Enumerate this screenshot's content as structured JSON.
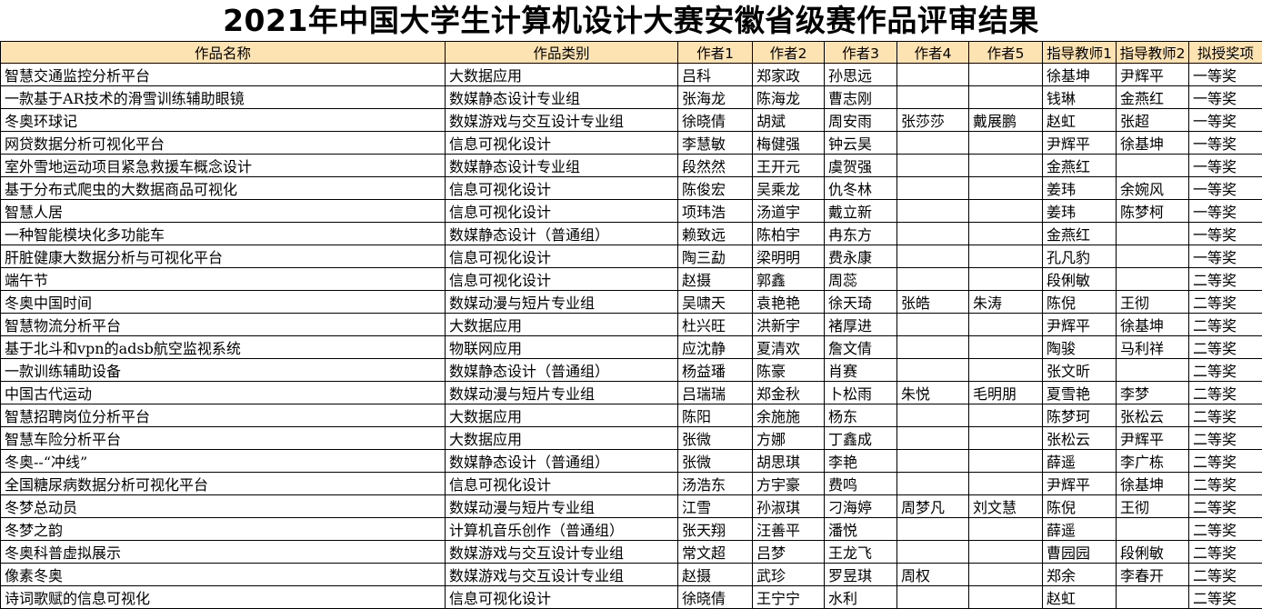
{
  "title": "2021年中国大学生计算机设计大赛安徽省级赛作品评审结果",
  "header_color": "#fde3b2",
  "columns": [
    "作品名称",
    "作品类别",
    "作者1",
    "作者2",
    "作者3",
    "作者4",
    "作者5",
    "指导教师1",
    "指导教师2",
    "拟授奖项"
  ],
  "rows": [
    [
      "智慧交通监控分析平台",
      "大数据应用",
      "吕科",
      "郑家政",
      "孙思远",
      "",
      "",
      "徐基坤",
      "尹辉平",
      "一等奖"
    ],
    [
      "一款基于AR技术的滑雪训练辅助眼镜",
      "数媒静态设计专业组",
      "张海龙",
      "陈海龙",
      "曹志刚",
      "",
      "",
      "钱琳",
      "金燕红",
      "一等奖"
    ],
    [
      "冬奥环球记",
      "数媒游戏与交互设计专业组",
      "徐晓倩",
      "胡斌",
      "周安雨",
      "张莎莎",
      "戴展鹏",
      "赵虹",
      "张超",
      "一等奖"
    ],
    [
      "网贷数据分析可视化平台",
      "信息可视化设计",
      "李慧敏",
      "梅健强",
      "钟云昊",
      "",
      "",
      "尹辉平",
      "徐基坤",
      "一等奖"
    ],
    [
      "室外雪地运动项目紧急救援车概念设计",
      "数媒静态设计专业组",
      "段然然",
      "王开元",
      "虞贺强",
      "",
      "",
      "金燕红",
      "",
      "一等奖"
    ],
    [
      "基于分布式爬虫的大数据商品可视化",
      "信息可视化设计",
      "陈俊宏",
      "吴乘龙",
      "仇冬林",
      "",
      "",
      "姜玮",
      "余婉风",
      "一等奖"
    ],
    [
      "智慧人居",
      "信息可视化设计",
      "项玮浩",
      "汤道宇",
      "戴立新",
      "",
      "",
      "姜玮",
      "陈梦柯",
      "一等奖"
    ],
    [
      "一种智能模块化多功能车",
      "数媒静态设计（普通组）",
      "赖致远",
      "陈柏宇",
      "冉东方",
      "",
      "",
      "金燕红",
      "",
      "一等奖"
    ],
    [
      "肝脏健康大数据分析与可视化平台",
      "信息可视化设计",
      "陶三勐",
      "梁明明",
      "费永康",
      "",
      "",
      "孔凡豹",
      "",
      "一等奖"
    ],
    [
      "端午节",
      "信息可视化设计",
      "赵摄",
      "郭鑫",
      "周蕊",
      "",
      "",
      "段俐敏",
      "",
      "二等奖"
    ],
    [
      "冬奥中国时间",
      "数媒动漫与短片专业组",
      "吴啸天",
      "袁艳艳",
      "徐天琦",
      "张皓",
      "朱涛",
      "陈倪",
      "王彻",
      "二等奖"
    ],
    [
      "智慧物流分析平台",
      "大数据应用",
      "杜兴旺",
      "洪新宇",
      "褚厚进",
      "",
      "",
      "尹辉平",
      "徐基坤",
      "二等奖"
    ],
    [
      "基于北斗和vpn的adsb航空监视系统",
      "物联网应用",
      "应沈静",
      "夏清欢",
      "詹文倩",
      "",
      "",
      "陶骏",
      "马利祥",
      "二等奖"
    ],
    [
      "一款训练辅助设备",
      "数媒静态设计（普通组）",
      "杨益璠",
      "陈豪",
      "肖赛",
      "",
      "",
      "张文昕",
      "",
      "二等奖"
    ],
    [
      "中国古代运动",
      "数媒动漫与短片专业组",
      "吕瑞瑞",
      "郑金秋",
      "卜松雨",
      "朱悦",
      "毛明朋",
      "夏雪艳",
      "李梦",
      "二等奖"
    ],
    [
      "智慧招聘岗位分析平台",
      "大数据应用",
      "陈阳",
      "余施施",
      "杨东",
      "",
      "",
      "陈梦珂",
      "张松云",
      "二等奖"
    ],
    [
      "智慧车险分析平台",
      "大数据应用",
      "张微",
      "方娜",
      "丁鑫成",
      "",
      "",
      "张松云",
      "尹辉平",
      "二等奖"
    ],
    [
      "冬奥--“冲线”",
      "数媒静态设计（普通组）",
      "张微",
      "胡思琪",
      "李艳",
      "",
      "",
      "薛遥",
      "李广栋",
      "二等奖"
    ],
    [
      "全国糖尿病数据分析可视化平台",
      "信息可视化设计",
      "汤浩东",
      "方宇豪",
      "费鸣",
      "",
      "",
      "尹辉平",
      "徐基坤",
      "二等奖"
    ],
    [
      "冬梦总动员",
      "数媒动漫与短片专业组",
      "江雪",
      "孙淑琪",
      "刁海婷",
      "周梦凡",
      "刘文慧",
      "陈倪",
      "王彻",
      "二等奖"
    ],
    [
      "冬梦之韵",
      "计算机音乐创作（普通组）",
      "张天翔",
      "汪善平",
      "潘悦",
      "",
      "",
      "薛遥",
      "",
      "二等奖"
    ],
    [
      "冬奥科普虚拟展示",
      "数媒游戏与交互设计专业组",
      "常文超",
      "吕梦",
      "王龙飞",
      "",
      "",
      "曹园园",
      "段俐敏",
      "二等奖"
    ],
    [
      "像素冬奥",
      "数媒游戏与交互设计专业组",
      "赵摄",
      "武珍",
      "罗昱琪",
      "周权",
      "",
      "郑余",
      "李春开",
      "二等奖"
    ],
    [
      "诗词歌赋的信息可视化",
      "信息可视化设计",
      "徐晓倩",
      "王宁宁",
      "水利",
      "",
      "",
      "赵虹",
      "",
      "二等奖"
    ]
  ]
}
